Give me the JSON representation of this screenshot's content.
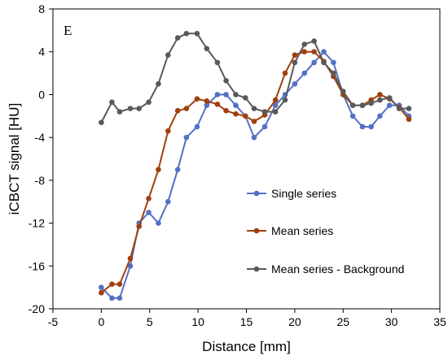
{
  "chart_data": {
    "type": "line",
    "panel_label": "E",
    "xlabel": "Distance [mm]",
    "ylabel": "iCBCT signal [HU]",
    "xlim": [
      -5,
      35
    ],
    "ylim": [
      -20,
      8
    ],
    "xticks": [
      -5,
      0,
      5,
      10,
      15,
      20,
      25,
      30,
      35
    ],
    "yticks": [
      -20,
      -16,
      -12,
      -8,
      -4,
      0,
      4,
      8
    ],
    "xtick_labels": [
      "-5",
      "0",
      "5",
      "10",
      "15",
      "20",
      "25",
      "30",
      "35"
    ],
    "ytick_labels": [
      "-20",
      "-16",
      "-12",
      "-8",
      "-4",
      "0",
      "4",
      "8"
    ],
    "grid": false,
    "legend_position": "center-right",
    "series": [
      {
        "name": "Single series",
        "color": "#5470c6",
        "x": [
          0,
          1.1,
          1.9,
          3.0,
          3.9,
          4.9,
          5.9,
          6.9,
          7.9,
          8.8,
          9.9,
          10.9,
          12.0,
          12.9,
          13.9,
          14.9,
          15.8,
          16.9,
          18.0,
          19.0,
          20.0,
          21.0,
          22.0,
          23.0,
          24.0,
          25.0,
          26.0,
          27.0,
          27.9,
          28.8,
          29.8,
          30.8,
          31.8
        ],
        "values": [
          -18.0,
          -19.0,
          -19.0,
          -16.0,
          -12.0,
          -11.0,
          -12.0,
          -10.0,
          -7.0,
          -4.0,
          -3.0,
          -1.0,
          0.0,
          0.0,
          -1.0,
          -2.0,
          -4.0,
          -3.0,
          -1.0,
          0.0,
          1.0,
          2.0,
          3.0,
          4.0,
          3.0,
          0.0,
          -2.0,
          -3.0,
          -3.0,
          -2.0,
          -1.0,
          -1.0,
          -2.0
        ]
      },
      {
        "name": "Mean series",
        "color": "#a0400d",
        "x": [
          0,
          1.1,
          1.9,
          3.0,
          3.9,
          4.9,
          5.9,
          6.9,
          7.9,
          8.8,
          9.9,
          10.9,
          12.0,
          12.9,
          13.9,
          14.9,
          15.8,
          16.9,
          18.0,
          19.0,
          20.0,
          21.0,
          22.0,
          23.0,
          24.0,
          25.0,
          26.0,
          27.0,
          27.9,
          28.8,
          29.8,
          30.8,
          31.8
        ],
        "values": [
          -18.5,
          -17.7,
          -17.7,
          -15.3,
          -12.3,
          -9.7,
          -7.0,
          -3.4,
          -1.5,
          -1.3,
          -0.4,
          -0.6,
          -0.9,
          -1.5,
          -1.8,
          -2.0,
          -2.5,
          -1.9,
          -0.5,
          2.0,
          3.7,
          4.0,
          4.0,
          3.1,
          1.7,
          0.0,
          -1.0,
          -1.0,
          -0.5,
          0.0,
          -0.4,
          -1.2,
          -2.3
        ]
      },
      {
        "name": "Mean series - Background",
        "color": "#595959",
        "x": [
          0,
          1.1,
          1.9,
          3.0,
          3.9,
          4.9,
          5.9,
          6.9,
          7.9,
          8.8,
          9.9,
          10.9,
          12.0,
          12.9,
          13.9,
          14.9,
          15.8,
          16.9,
          18.0,
          19.0,
          20.0,
          21.0,
          22.0,
          23.0,
          24.0,
          25.0,
          26.0,
          27.0,
          27.9,
          28.8,
          29.8,
          30.8,
          31.8
        ],
        "values": [
          -2.6,
          -0.7,
          -1.6,
          -1.3,
          -1.3,
          -0.7,
          1.0,
          3.7,
          5.3,
          5.7,
          5.7,
          4.3,
          3.0,
          1.3,
          0.0,
          -0.3,
          -1.3,
          -1.6,
          -1.6,
          -0.5,
          3.0,
          4.7,
          5.0,
          3.0,
          2.0,
          0.3,
          -1.0,
          -1.0,
          -0.8,
          -0.5,
          -0.3,
          -1.3,
          -1.3
        ]
      }
    ]
  }
}
